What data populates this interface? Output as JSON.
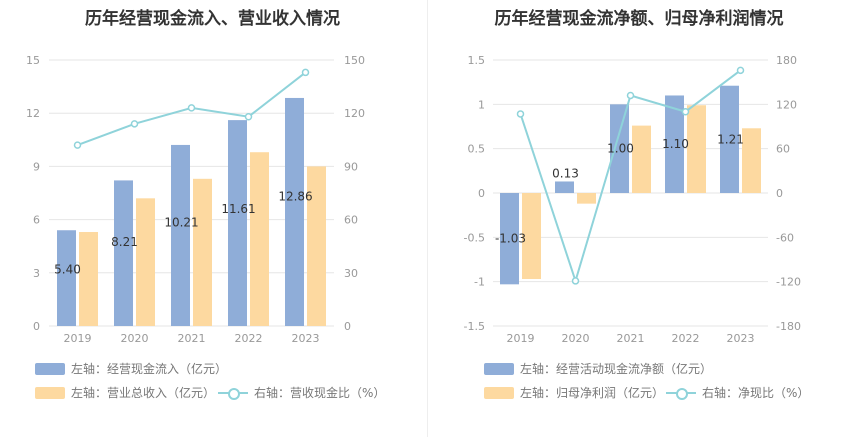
{
  "colors": {
    "bar_primary": "#8fadd8",
    "bar_secondary": "#fdd9a0",
    "line": "#8fd3da",
    "grid": "#e6e6e6"
  },
  "chart_data": [
    {
      "type": "bar",
      "title": "历年经营现金流入、营业收入情况",
      "categories": [
        "2019",
        "2020",
        "2021",
        "2022",
        "2023"
      ],
      "yaxis_left": {
        "min": 0,
        "max": 15,
        "ticks": [
          "0",
          "3",
          "6",
          "9",
          "12",
          "15"
        ]
      },
      "yaxis_right": {
        "min": 0,
        "max": 150,
        "ticks": [
          "0",
          "30",
          "60",
          "90",
          "120",
          "150"
        ]
      },
      "series": [
        {
          "name": "左轴：经营现金流入（亿元）",
          "axis": "left",
          "kind": "bar",
          "values": [
            5.4,
            8.21,
            10.21,
            11.61,
            12.86
          ],
          "labels": [
            "5.40",
            "8.21",
            "10.21",
            "11.61",
            "12.86"
          ]
        },
        {
          "name": "左轴：营业总收入（亿元）",
          "axis": "left",
          "kind": "bar",
          "values": [
            5.3,
            7.2,
            8.3,
            9.8,
            9.0
          ]
        },
        {
          "name": "右轴：营收现金比（%）",
          "axis": "right",
          "kind": "line",
          "values": [
            102,
            114,
            123,
            118,
            143
          ]
        }
      ],
      "grid": true
    },
    {
      "type": "bar",
      "title": "历年经营现金流净额、归母净利润情况",
      "categories": [
        "2019",
        "2020",
        "2021",
        "2022",
        "2023"
      ],
      "yaxis_left": {
        "min": -1.5,
        "max": 1.5,
        "ticks": [
          "-1.5",
          "-1",
          "-0.5",
          "0",
          "0.5",
          "1",
          "1.5"
        ]
      },
      "yaxis_right": {
        "min": -180,
        "max": 180,
        "ticks": [
          "-180",
          "-120",
          "-60",
          "0",
          "60",
          "120",
          "180"
        ]
      },
      "series": [
        {
          "name": "左轴：经营活动现金流净额（亿元）",
          "axis": "left",
          "kind": "bar",
          "values": [
            -1.03,
            0.13,
            1.0,
            1.1,
            1.21
          ],
          "labels": [
            "-1.03",
            "0.13",
            "1.00",
            "1.10",
            "1.21"
          ]
        },
        {
          "name": "左轴：归母净利润（亿元）",
          "axis": "left",
          "kind": "bar",
          "values": [
            -0.97,
            -0.12,
            0.76,
            0.99,
            0.73
          ]
        },
        {
          "name": "右轴：净现比（%）",
          "axis": "right",
          "kind": "line",
          "values": [
            107,
            -119,
            132,
            110,
            166
          ]
        }
      ],
      "grid": true
    }
  ]
}
